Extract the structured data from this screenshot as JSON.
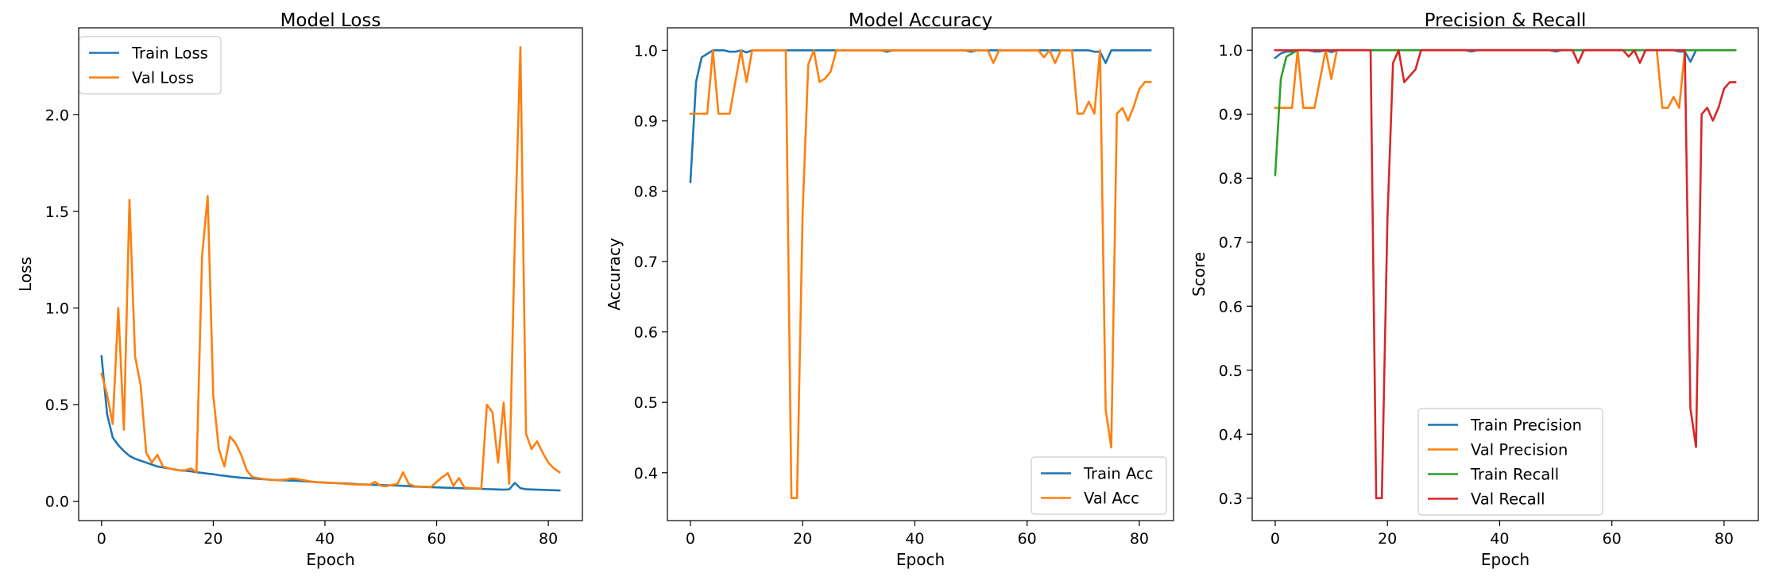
{
  "chart_data": [
    {
      "type": "line",
      "title": "Model Loss",
      "xlabel": "Epoch",
      "ylabel": "Loss",
      "xlim": [
        -4.1,
        86.1
      ],
      "ylim": [
        -0.1,
        2.45
      ],
      "xticks": [
        0,
        20,
        40,
        60,
        80
      ],
      "yticks": [
        0.0,
        0.5,
        1.0,
        1.5,
        2.0
      ],
      "ytick_decimals": 1,
      "legend_position": "upper left",
      "grid": false,
      "x": [
        0,
        1,
        2,
        3,
        4,
        5,
        6,
        7,
        8,
        9,
        10,
        11,
        12,
        13,
        14,
        15,
        16,
        17,
        18,
        19,
        20,
        21,
        22,
        23,
        24,
        25,
        26,
        27,
        28,
        29,
        30,
        31,
        32,
        33,
        34,
        35,
        36,
        37,
        38,
        39,
        40,
        41,
        42,
        43,
        44,
        45,
        46,
        47,
        48,
        49,
        50,
        51,
        52,
        53,
        54,
        55,
        56,
        57,
        58,
        59,
        60,
        61,
        62,
        63,
        64,
        65,
        66,
        67,
        68,
        69,
        70,
        71,
        72,
        73,
        74,
        75,
        76,
        77,
        78,
        79,
        80,
        81,
        82
      ],
      "series": [
        {
          "name": "Train Loss",
          "color": "#1f77b4",
          "values": [
            0.75,
            0.45,
            0.33,
            0.29,
            0.26,
            0.235,
            0.22,
            0.21,
            0.2,
            0.19,
            0.18,
            0.175,
            0.17,
            0.165,
            0.16,
            0.158,
            0.155,
            0.15,
            0.147,
            0.143,
            0.14,
            0.135,
            0.132,
            0.128,
            0.125,
            0.122,
            0.12,
            0.118,
            0.116,
            0.114,
            0.112,
            0.11,
            0.109,
            0.108,
            0.107,
            0.106,
            0.104,
            0.102,
            0.1,
            0.098,
            0.096,
            0.095,
            0.094,
            0.093,
            0.092,
            0.09,
            0.088,
            0.087,
            0.086,
            0.085,
            0.084,
            0.083,
            0.082,
            0.081,
            0.08,
            0.078,
            0.076,
            0.075,
            0.074,
            0.073,
            0.072,
            0.071,
            0.07,
            0.069,
            0.068,
            0.067,
            0.066,
            0.065,
            0.064,
            0.063,
            0.062,
            0.061,
            0.06,
            0.062,
            0.095,
            0.068,
            0.062,
            0.061,
            0.06,
            0.059,
            0.058,
            0.057,
            0.056
          ]
        },
        {
          "name": "Val Loss",
          "color": "#ff7f0e",
          "values": [
            0.66,
            0.55,
            0.4,
            1.0,
            0.37,
            1.56,
            0.75,
            0.6,
            0.25,
            0.2,
            0.24,
            0.18,
            0.17,
            0.165,
            0.16,
            0.16,
            0.17,
            0.15,
            1.27,
            1.58,
            0.55,
            0.27,
            0.18,
            0.335,
            0.3,
            0.24,
            0.16,
            0.125,
            0.12,
            0.115,
            0.112,
            0.11,
            0.11,
            0.112,
            0.118,
            0.115,
            0.11,
            0.105,
            0.1,
            0.098,
            0.097,
            0.095,
            0.094,
            0.092,
            0.09,
            0.088,
            0.087,
            0.086,
            0.085,
            0.1,
            0.08,
            0.078,
            0.085,
            0.09,
            0.15,
            0.09,
            0.078,
            0.076,
            0.075,
            0.074,
            0.1,
            0.125,
            0.145,
            0.08,
            0.12,
            0.07,
            0.068,
            0.067,
            0.066,
            0.5,
            0.46,
            0.2,
            0.51,
            0.09,
            1.35,
            2.35,
            0.35,
            0.27,
            0.31,
            0.25,
            0.2,
            0.17,
            0.15
          ]
        }
      ]
    },
    {
      "type": "line",
      "title": "Model Accuracy",
      "xlabel": "Epoch",
      "ylabel": "Accuracy",
      "xlim": [
        -4.1,
        86.1
      ],
      "ylim": [
        0.332,
        1.032
      ],
      "xticks": [
        0,
        20,
        40,
        60,
        80
      ],
      "yticks": [
        0.4,
        0.5,
        0.6,
        0.7,
        0.8,
        0.9,
        1.0
      ],
      "ytick_decimals": 1,
      "legend_position": "lower right",
      "grid": false,
      "x": [
        0,
        1,
        2,
        3,
        4,
        5,
        6,
        7,
        8,
        9,
        10,
        11,
        12,
        13,
        14,
        15,
        16,
        17,
        18,
        19,
        20,
        21,
        22,
        23,
        24,
        25,
        26,
        27,
        28,
        29,
        30,
        31,
        32,
        33,
        34,
        35,
        36,
        37,
        38,
        39,
        40,
        41,
        42,
        43,
        44,
        45,
        46,
        47,
        48,
        49,
        50,
        51,
        52,
        53,
        54,
        55,
        56,
        57,
        58,
        59,
        60,
        61,
        62,
        63,
        64,
        65,
        66,
        67,
        68,
        69,
        70,
        71,
        72,
        73,
        74,
        75,
        76,
        77,
        78,
        79,
        80,
        81,
        82
      ],
      "series": [
        {
          "name": "Train Acc",
          "color": "#1f77b4",
          "values": [
            0.813,
            0.955,
            0.99,
            0.995,
            1.0,
            1.0,
            1.0,
            0.998,
            0.998,
            1.0,
            0.997,
            1.0,
            1.0,
            1.0,
            1.0,
            1.0,
            1.0,
            1.0,
            1.0,
            1.0,
            1.0,
            1.0,
            1.0,
            1.0,
            1.0,
            1.0,
            1.0,
            1.0,
            1.0,
            1.0,
            1.0,
            1.0,
            1.0,
            1.0,
            1.0,
            0.998,
            1.0,
            1.0,
            1.0,
            1.0,
            1.0,
            1.0,
            1.0,
            1.0,
            1.0,
            1.0,
            1.0,
            1.0,
            1.0,
            1.0,
            0.998,
            1.0,
            1.0,
            1.0,
            1.0,
            1.0,
            1.0,
            1.0,
            1.0,
            1.0,
            1.0,
            1.0,
            1.0,
            1.0,
            1.0,
            1.0,
            1.0,
            1.0,
            1.0,
            1.0,
            1.0,
            1.0,
            0.998,
            0.998,
            0.982,
            1.0,
            1.0,
            1.0,
            1.0,
            1.0,
            1.0,
            1.0,
            1.0
          ]
        },
        {
          "name": "Val Acc",
          "color": "#ff7f0e",
          "values": [
            0.91,
            0.91,
            0.91,
            0.91,
            1.0,
            0.91,
            0.91,
            0.91,
            0.955,
            1.0,
            0.955,
            1.0,
            1.0,
            1.0,
            1.0,
            1.0,
            1.0,
            1.0,
            0.364,
            0.364,
            0.77,
            0.98,
            1.0,
            0.955,
            0.96,
            0.97,
            1.0,
            1.0,
            1.0,
            1.0,
            1.0,
            1.0,
            1.0,
            1.0,
            1.0,
            1.0,
            1.0,
            1.0,
            1.0,
            1.0,
            1.0,
            1.0,
            1.0,
            1.0,
            1.0,
            1.0,
            1.0,
            1.0,
            1.0,
            1.0,
            1.0,
            1.0,
            1.0,
            1.0,
            0.982,
            1.0,
            1.0,
            1.0,
            1.0,
            1.0,
            1.0,
            1.0,
            1.0,
            0.99,
            1.0,
            0.982,
            1.0,
            1.0,
            1.0,
            0.91,
            0.91,
            0.927,
            0.91,
            1.0,
            0.49,
            0.436,
            0.91,
            0.918,
            0.9,
            0.92,
            0.945,
            0.955,
            0.955
          ]
        }
      ]
    },
    {
      "type": "line",
      "title": "Precision & Recall",
      "xlabel": "Epoch",
      "ylabel": "Score",
      "xlim": [
        -4.1,
        86.1
      ],
      "ylim": [
        0.265,
        1.035
      ],
      "xticks": [
        0,
        20,
        40,
        60,
        80
      ],
      "yticks": [
        0.3,
        0.4,
        0.5,
        0.6,
        0.7,
        0.8,
        0.9,
        1.0
      ],
      "ytick_decimals": 1,
      "legend_position": "lower center",
      "grid": false,
      "x": [
        0,
        1,
        2,
        3,
        4,
        5,
        6,
        7,
        8,
        9,
        10,
        11,
        12,
        13,
        14,
        15,
        16,
        17,
        18,
        19,
        20,
        21,
        22,
        23,
        24,
        25,
        26,
        27,
        28,
        29,
        30,
        31,
        32,
        33,
        34,
        35,
        36,
        37,
        38,
        39,
        40,
        41,
        42,
        43,
        44,
        45,
        46,
        47,
        48,
        49,
        50,
        51,
        52,
        53,
        54,
        55,
        56,
        57,
        58,
        59,
        60,
        61,
        62,
        63,
        64,
        65,
        66,
        67,
        68,
        69,
        70,
        71,
        72,
        73,
        74,
        75,
        76,
        77,
        78,
        79,
        80,
        81,
        82
      ],
      "series": [
        {
          "name": "Train Precision",
          "color": "#1f77b4",
          "values": [
            0.988,
            0.995,
            0.998,
            0.998,
            1.0,
            1.0,
            1.0,
            0.998,
            0.998,
            1.0,
            0.997,
            1.0,
            1.0,
            1.0,
            1.0,
            1.0,
            1.0,
            1.0,
            1.0,
            1.0,
            1.0,
            1.0,
            1.0,
            1.0,
            1.0,
            1.0,
            1.0,
            1.0,
            1.0,
            1.0,
            1.0,
            1.0,
            1.0,
            1.0,
            1.0,
            0.998,
            1.0,
            1.0,
            1.0,
            1.0,
            1.0,
            1.0,
            1.0,
            1.0,
            1.0,
            1.0,
            1.0,
            1.0,
            1.0,
            1.0,
            0.998,
            1.0,
            1.0,
            1.0,
            1.0,
            1.0,
            1.0,
            1.0,
            1.0,
            1.0,
            1.0,
            1.0,
            1.0,
            1.0,
            1.0,
            1.0,
            1.0,
            1.0,
            1.0,
            1.0,
            1.0,
            1.0,
            0.998,
            0.998,
            0.982,
            1.0,
            1.0,
            1.0,
            1.0,
            1.0,
            1.0,
            1.0,
            1.0
          ]
        },
        {
          "name": "Val Precision",
          "color": "#ff7f0e",
          "values": [
            0.91,
            0.91,
            0.91,
            0.91,
            1.0,
            0.91,
            0.91,
            0.91,
            0.955,
            1.0,
            0.955,
            1.0,
            1.0,
            1.0,
            1.0,
            1.0,
            1.0,
            1.0,
            1.0,
            1.0,
            1.0,
            1.0,
            1.0,
            1.0,
            1.0,
            1.0,
            1.0,
            1.0,
            1.0,
            1.0,
            1.0,
            1.0,
            1.0,
            1.0,
            1.0,
            1.0,
            1.0,
            1.0,
            1.0,
            1.0,
            1.0,
            1.0,
            1.0,
            1.0,
            1.0,
            1.0,
            1.0,
            1.0,
            1.0,
            1.0,
            1.0,
            1.0,
            1.0,
            1.0,
            1.0,
            1.0,
            1.0,
            1.0,
            1.0,
            1.0,
            1.0,
            1.0,
            1.0,
            1.0,
            1.0,
            1.0,
            1.0,
            1.0,
            1.0,
            0.91,
            0.91,
            0.927,
            0.91,
            1.0,
            1.0,
            1.0,
            1.0,
            1.0,
            1.0,
            1.0,
            1.0,
            1.0,
            1.0
          ]
        },
        {
          "name": "Train Recall",
          "color": "#2ca02c",
          "values": [
            0.805,
            0.955,
            0.99,
            0.995,
            1.0,
            1.0,
            1.0,
            1.0,
            1.0,
            1.0,
            1.0,
            1.0,
            1.0,
            1.0,
            1.0,
            1.0,
            1.0,
            1.0,
            1.0,
            1.0,
            1.0,
            1.0,
            1.0,
            1.0,
            1.0,
            1.0,
            1.0,
            1.0,
            1.0,
            1.0,
            1.0,
            1.0,
            1.0,
            1.0,
            1.0,
            1.0,
            1.0,
            1.0,
            1.0,
            1.0,
            1.0,
            1.0,
            1.0,
            1.0,
            1.0,
            1.0,
            1.0,
            1.0,
            1.0,
            1.0,
            1.0,
            1.0,
            1.0,
            1.0,
            1.0,
            1.0,
            1.0,
            1.0,
            1.0,
            1.0,
            1.0,
            1.0,
            1.0,
            1.0,
            1.0,
            1.0,
            1.0,
            1.0,
            1.0,
            1.0,
            1.0,
            1.0,
            1.0,
            1.0,
            1.0,
            1.0,
            1.0,
            1.0,
            1.0,
            1.0,
            1.0,
            1.0,
            1.0
          ]
        },
        {
          "name": "Val Recall",
          "color": "#d62728",
          "values": [
            1.0,
            1.0,
            1.0,
            1.0,
            1.0,
            1.0,
            1.0,
            1.0,
            1.0,
            1.0,
            1.0,
            1.0,
            1.0,
            1.0,
            1.0,
            1.0,
            1.0,
            1.0,
            0.3,
            0.3,
            0.735,
            0.98,
            1.0,
            0.95,
            0.96,
            0.97,
            1.0,
            1.0,
            1.0,
            1.0,
            1.0,
            1.0,
            1.0,
            1.0,
            1.0,
            1.0,
            1.0,
            1.0,
            1.0,
            1.0,
            1.0,
            1.0,
            1.0,
            1.0,
            1.0,
            1.0,
            1.0,
            1.0,
            1.0,
            1.0,
            1.0,
            1.0,
            1.0,
            1.0,
            0.98,
            1.0,
            1.0,
            1.0,
            1.0,
            1.0,
            1.0,
            1.0,
            1.0,
            0.99,
            1.0,
            0.98,
            1.0,
            1.0,
            1.0,
            1.0,
            1.0,
            1.0,
            1.0,
            1.0,
            0.44,
            0.38,
            0.9,
            0.91,
            0.89,
            0.91,
            0.94,
            0.95,
            0.95
          ]
        }
      ]
    }
  ]
}
